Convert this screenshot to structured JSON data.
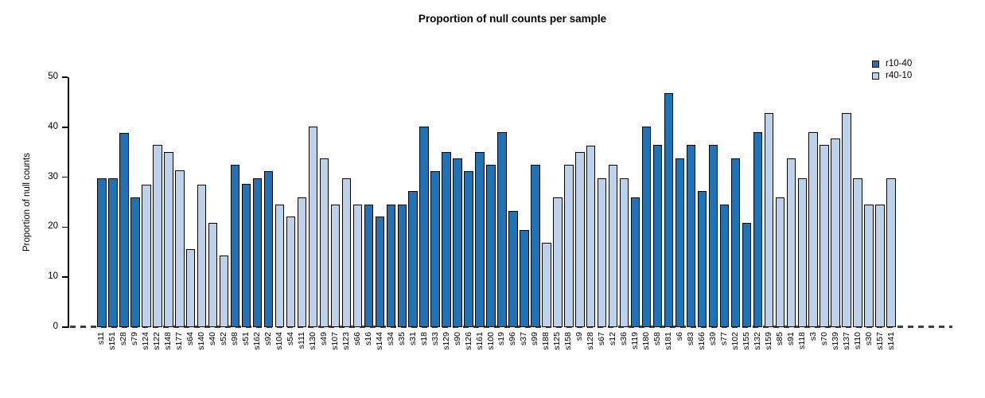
{
  "title": "Proportion of null counts per sample",
  "y_axis": {
    "label": "Proportion of null counts"
  },
  "legend": {
    "position": "top-right",
    "entries": [
      {
        "label": "r10-40",
        "color_key": "r10-40"
      },
      {
        "label": "r40-10",
        "color_key": "r40-10"
      }
    ]
  },
  "colors": {
    "r10-40": "#2171B5",
    "r40-10": "#BDD1EB",
    "bar_border": "#000000",
    "axis": "#000000",
    "zero_line": "#404040"
  },
  "chart_data": {
    "type": "bar",
    "title": "Proportion of null counts per sample",
    "xlabel": "",
    "ylabel": "Proportion of null counts",
    "ylim": [
      0,
      50
    ],
    "y_ticks": [
      0,
      10,
      20,
      30,
      40,
      50
    ],
    "grid": false,
    "legend_entries": [
      "r10-40",
      "r40-10"
    ],
    "baseline_style": "dashed",
    "categories": [
      "s11",
      "s151",
      "s28",
      "s79",
      "s124",
      "s122",
      "s148",
      "s177",
      "s64",
      "s140",
      "s40",
      "s52",
      "s98",
      "s51",
      "s162",
      "s92",
      "s104",
      "s54",
      "s111",
      "s130",
      "s49",
      "s107",
      "s123",
      "s66",
      "s16",
      "s144",
      "s34",
      "s35",
      "s31",
      "s18",
      "s33",
      "s129",
      "s90",
      "s126",
      "s161",
      "s100",
      "s19",
      "s96",
      "s37",
      "s99",
      "s188",
      "s125",
      "s158",
      "s9",
      "s128",
      "s67",
      "s12",
      "s36",
      "s119",
      "s180",
      "s58",
      "s181",
      "s6",
      "s83",
      "s166",
      "s39",
      "s77",
      "s102",
      "s155",
      "s132",
      "s159",
      "s85",
      "s91",
      "s118",
      "s3",
      "s70",
      "s139",
      "s137",
      "s110",
      "s30",
      "s157",
      "s141"
    ],
    "values": [
      29.8,
      29.8,
      38.9,
      26.0,
      28.5,
      36.4,
      35.0,
      31.3,
      15.6,
      28.5,
      20.8,
      14.3,
      32.5,
      28.6,
      29.8,
      31.2,
      24.5,
      22.1,
      26.0,
      40.2,
      33.8,
      24.5,
      29.8,
      24.5,
      24.5,
      22.1,
      24.5,
      24.5,
      27.3,
      40.2,
      31.2,
      35.0,
      33.7,
      31.2,
      35.0,
      32.5,
      39.0,
      23.3,
      19.5,
      32.5,
      16.9,
      26.0,
      32.5,
      35.0,
      36.3,
      29.8,
      32.5,
      29.8,
      26.0,
      40.2,
      36.4,
      46.8,
      33.7,
      36.4,
      27.3,
      36.4,
      24.6,
      33.7,
      20.8,
      39.0,
      42.8,
      26.0,
      33.7,
      29.8,
      39.0,
      36.4,
      37.8,
      42.8,
      29.8,
      24.6,
      24.6,
      29.8
    ],
    "group": [
      "r10-40",
      "r10-40",
      "r10-40",
      "r10-40",
      "r40-10",
      "r40-10",
      "r40-10",
      "r40-10",
      "r40-10",
      "r40-10",
      "r40-10",
      "r40-10",
      "r10-40",
      "r10-40",
      "r10-40",
      "r10-40",
      "r40-10",
      "r40-10",
      "r40-10",
      "r40-10",
      "r40-10",
      "r40-10",
      "r40-10",
      "r40-10",
      "r10-40",
      "r10-40",
      "r10-40",
      "r10-40",
      "r10-40",
      "r10-40",
      "r10-40",
      "r10-40",
      "r10-40",
      "r10-40",
      "r10-40",
      "r10-40",
      "r10-40",
      "r10-40",
      "r10-40",
      "r10-40",
      "r40-10",
      "r40-10",
      "r40-10",
      "r40-10",
      "r40-10",
      "r40-10",
      "r40-10",
      "r40-10",
      "r10-40",
      "r10-40",
      "r10-40",
      "r10-40",
      "r10-40",
      "r10-40",
      "r10-40",
      "r10-40",
      "r10-40",
      "r10-40",
      "r10-40",
      "r10-40",
      "r40-10",
      "r40-10",
      "r40-10",
      "r40-10",
      "r40-10",
      "r40-10",
      "r40-10",
      "r40-10",
      "r40-10",
      "r40-10",
      "r40-10",
      "r40-10"
    ]
  }
}
